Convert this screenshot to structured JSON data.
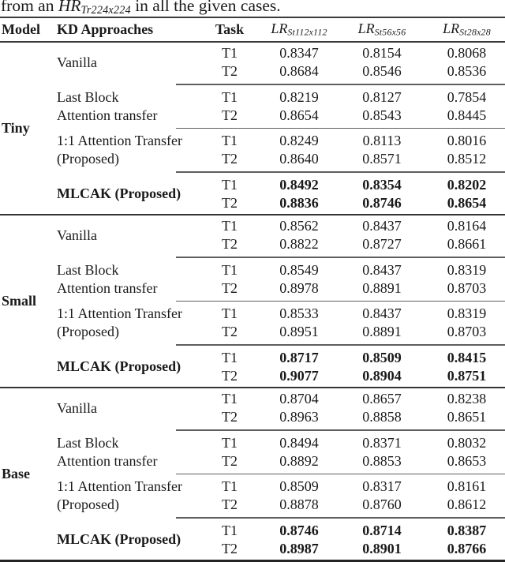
{
  "caption": {
    "part1": "from an ",
    "math": "HR",
    "math_sub": "Tr224x224",
    "part2": " in all the given cases."
  },
  "colors": {
    "text": "#1a1a1a",
    "rule_heavy": "#343434",
    "rule_light": "#5e5e5e"
  },
  "table": {
    "headers": {
      "model": "Model",
      "kd": "KD Approaches",
      "task": "Task",
      "metrics": [
        {
          "main": "LR",
          "sub": "St112x112"
        },
        {
          "main": "LR",
          "sub": "St56x56"
        },
        {
          "main": "LR",
          "sub": "St28x28"
        }
      ]
    },
    "groups": [
      {
        "model": "Tiny",
        "blocks": [
          {
            "label1": "Vanilla",
            "label2": "",
            "bold": false,
            "rows": [
              {
                "task": "T1",
                "v": [
                  "0.8347",
                  "0.8154",
                  "0.8068"
                ]
              },
              {
                "task": "T2",
                "v": [
                  "0.8684",
                  "0.8546",
                  "0.8536"
                ]
              }
            ]
          },
          {
            "label1": "Last Block",
            "label2": "Attention transfer",
            "bold": false,
            "rows": [
              {
                "task": "T1",
                "v": [
                  "0.8219",
                  "0.8127",
                  "0.7854"
                ]
              },
              {
                "task": "T2",
                "v": [
                  "0.8654",
                  "0.8543",
                  "0.8445"
                ]
              }
            ]
          },
          {
            "label1": "1:1 Attention Transfer",
            "label2": "(Proposed)",
            "bold": false,
            "rows": [
              {
                "task": "T1",
                "v": [
                  "0.8249",
                  "0.8113",
                  "0.8016"
                ]
              },
              {
                "task": "T2",
                "v": [
                  "0.8640",
                  "0.8571",
                  "0.8512"
                ]
              }
            ]
          },
          {
            "label1": "MLCAK (Proposed)",
            "label2": "",
            "bold": true,
            "rows": [
              {
                "task": "T1",
                "v": [
                  "0.8492",
                  "0.8354",
                  "0.8202"
                ]
              },
              {
                "task": "T2",
                "v": [
                  "0.8836",
                  "0.8746",
                  "0.8654"
                ]
              }
            ]
          }
        ]
      },
      {
        "model": "Small",
        "blocks": [
          {
            "label1": "Vanilla",
            "label2": "",
            "bold": false,
            "rows": [
              {
                "task": "T1",
                "v": [
                  "0.8562",
                  "0.8437",
                  "0.8164"
                ]
              },
              {
                "task": "T2",
                "v": [
                  "0.8822",
                  "0.8727",
                  "0.8661"
                ]
              }
            ]
          },
          {
            "label1": "Last Block",
            "label2": "Attention transfer",
            "bold": false,
            "rows": [
              {
                "task": "T1",
                "v": [
                  "0.8549",
                  "0.8437",
                  "0.8319"
                ]
              },
              {
                "task": "T2",
                "v": [
                  "0.8978",
                  "0.8891",
                  "0.8703"
                ]
              }
            ]
          },
          {
            "label1": "1:1 Attention Transfer",
            "label2": "(Proposed)",
            "bold": false,
            "rows": [
              {
                "task": "T1",
                "v": [
                  "0.8533",
                  "0.8437",
                  "0.8319"
                ]
              },
              {
                "task": "T2",
                "v": [
                  "0.8951",
                  "0.8891",
                  "0.8703"
                ]
              }
            ]
          },
          {
            "label1": "MLCAK (Proposed)",
            "label2": "",
            "bold": true,
            "rows": [
              {
                "task": "T1",
                "v": [
                  "0.8717",
                  "0.8509",
                  "0.8415"
                ]
              },
              {
                "task": "T2",
                "v": [
                  "0.9077",
                  "0.8904",
                  "0.8751"
                ]
              }
            ]
          }
        ]
      },
      {
        "model": "Base",
        "blocks": [
          {
            "label1": "Vanilla",
            "label2": "",
            "bold": false,
            "rows": [
              {
                "task": "T1",
                "v": [
                  "0.8704",
                  "0.8657",
                  "0.8238"
                ]
              },
              {
                "task": "T2",
                "v": [
                  "0.8963",
                  "0.8858",
                  "0.8651"
                ]
              }
            ]
          },
          {
            "label1": "Last Block",
            "label2": "Attention transfer",
            "bold": false,
            "rows": [
              {
                "task": "T1",
                "v": [
                  "0.8494",
                  "0.8371",
                  "0.8032"
                ]
              },
              {
                "task": "T2",
                "v": [
                  "0.8892",
                  "0.8853",
                  "0.8653"
                ]
              }
            ]
          },
          {
            "label1": "1:1 Attention Transfer",
            "label2": "(Proposed)",
            "bold": false,
            "rows": [
              {
                "task": "T1",
                "v": [
                  "0.8509",
                  "0.8317",
                  "0.8161"
                ]
              },
              {
                "task": "T2",
                "v": [
                  "0.8878",
                  "0.8760",
                  "0.8612"
                ]
              }
            ]
          },
          {
            "label1": "MLCAK (Proposed)",
            "label2": "",
            "bold": true,
            "rows": [
              {
                "task": "T1",
                "v": [
                  "0.8746",
                  "0.8714",
                  "0.8387"
                ]
              },
              {
                "task": "T2",
                "v": [
                  "0.8987",
                  "0.8901",
                  "0.8766"
                ]
              }
            ]
          }
        ]
      }
    ]
  }
}
